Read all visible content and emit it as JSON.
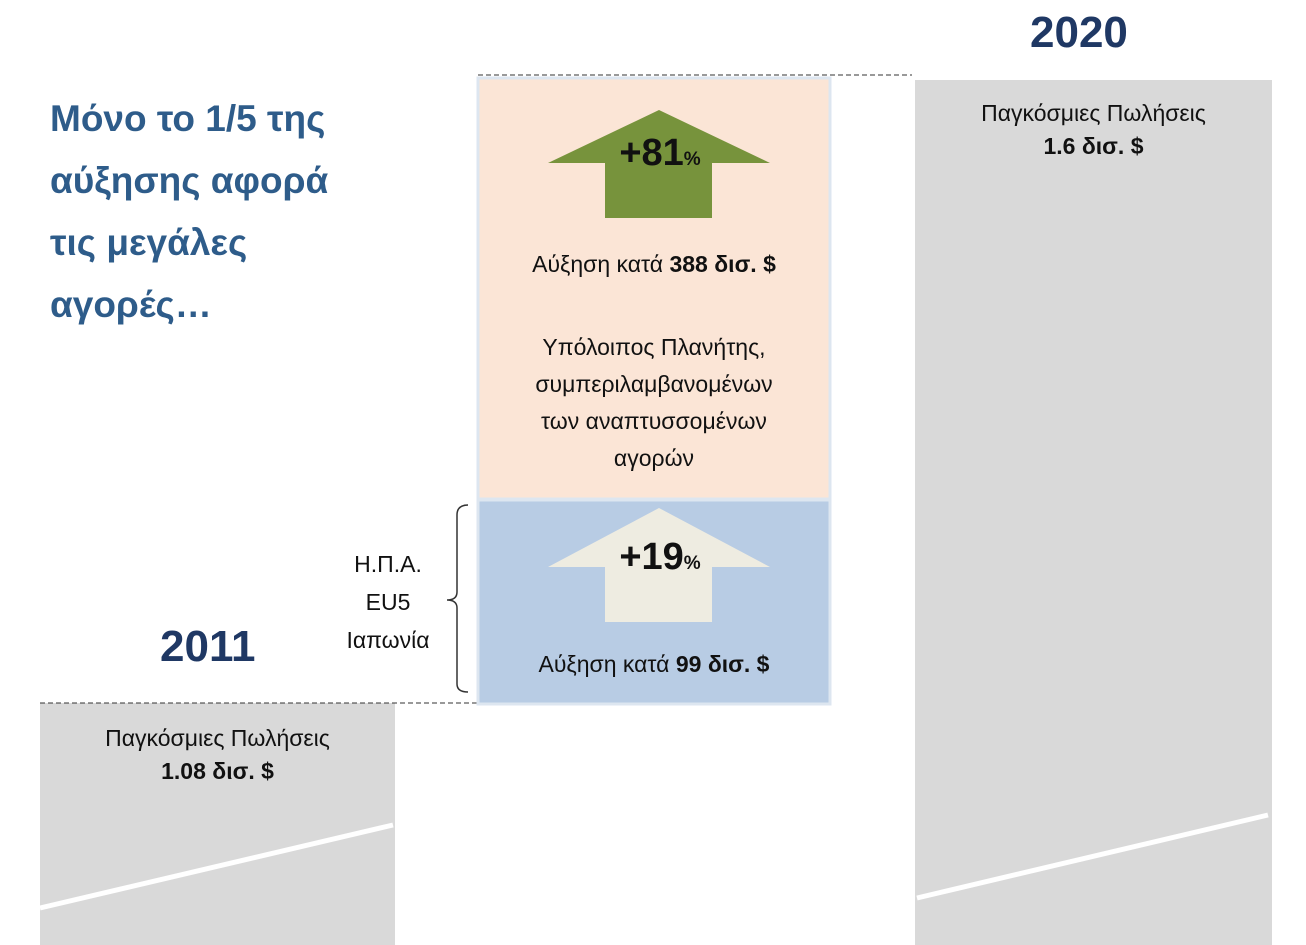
{
  "heading": {
    "lines": [
      "Μόνο το 1/5 της",
      "αύξησης αφορά",
      "τις μεγάλες",
      "αγορές…"
    ]
  },
  "year_start": "2011",
  "year_end": "2020",
  "bar_start": {
    "label": "Παγκόσμιες Πωλήσεις",
    "value": "1.08 δισ. $"
  },
  "bar_end": {
    "label": "Παγκόσμιες Πωλήσεις",
    "value": "1.6 δισ. $"
  },
  "rest_block": {
    "percent": "+81",
    "percent_unit": "%",
    "growth_prefix": "Αύξηση κατά",
    "growth_value": "388 δισ. $",
    "description": [
      "Υπόλοιπος Πλανήτης,",
      "συμπεριλαμβανομένων",
      "των αναπτυσσομένων",
      "αγορών"
    ]
  },
  "major_block": {
    "percent": "+19",
    "percent_unit": "%",
    "growth_prefix": "Αύξηση κατά",
    "growth_value": "99 δισ. $",
    "markets": [
      "Η.Π.Α.",
      "EU5",
      "Ιαπωνία"
    ]
  }
}
